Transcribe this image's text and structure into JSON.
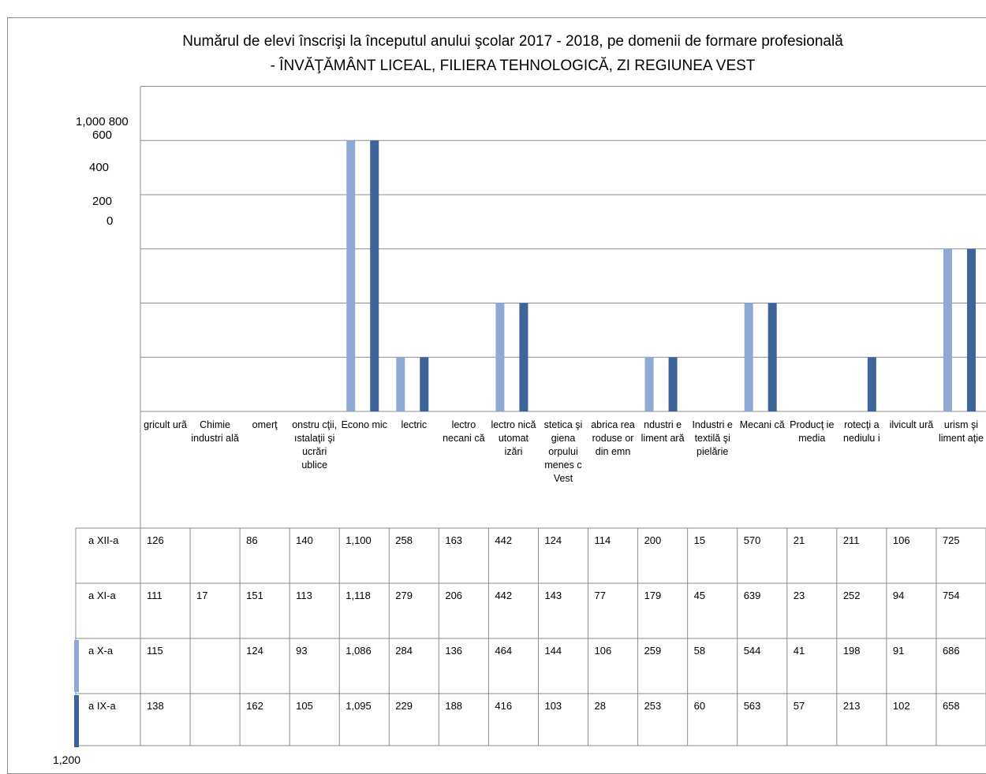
{
  "chart_data": {
    "type": "bar",
    "title": "Numărul de elevi înscrişi la începutul anului şcolar 2017 - 2018, pe domenii de formare profesională",
    "subtitle": "- ÎNVĂŢĂMÂNT LICEAL,  FILIERA TEHNOLOGICĂ, ZI REGIUNEA VEST",
    "ytick_labels": [
      "1,000 800",
      "600",
      "400",
      "200",
      "0"
    ],
    "ylim": [
      0,
      1200
    ],
    "y_axis_stray_label": "1,200",
    "grid": true,
    "categories": [
      "gricult urã",
      "Chimie industri ală",
      "omerţ",
      "onstru cţii, ıstalaţii şi ucrări ublice",
      "Econo mic",
      "lectric",
      "lectro necani că",
      "lectro nică utomat izări",
      "stetica şi giena orpului menes c Vest",
      "abrica rea roduse or din emn",
      "ndustri e liment ară",
      "Industri e textilă şi pielărie",
      "Mecani că",
      "Producţ ie media",
      "rotecţi a nediulu i",
      "ilvicult ură",
      "urism şi liment aţie"
    ],
    "series": [
      {
        "name": "a XII-a",
        "color": "#ffffff",
        "values": [
          126,
          null,
          86,
          140,
          1100,
          258,
          163,
          442,
          124,
          114,
          200,
          15,
          570,
          21,
          211,
          106,
          725
        ]
      },
      {
        "name": "a XI-a",
        "color": "#ffffff",
        "values": [
          111,
          17,
          151,
          113,
          1118,
          279,
          206,
          442,
          143,
          77,
          179,
          45,
          639,
          23,
          252,
          94,
          754
        ]
      },
      {
        "name": "a X-a",
        "color": "#8fa8d4",
        "values": [
          115,
          null,
          124,
          93,
          1086,
          284,
          136,
          464,
          144,
          106,
          259,
          58,
          544,
          41,
          198,
          91,
          686
        ]
      },
      {
        "name": "a IX-a",
        "color": "#3d6398",
        "values": [
          138,
          null,
          162,
          105,
          1095,
          229,
          188,
          416,
          103,
          28,
          253,
          60,
          563,
          57,
          213,
          102,
          658
        ]
      }
    ],
    "table_row_labels": [
      "a XII-a",
      "a XI-a",
      "a X-a",
      "a IX-a"
    ],
    "table_rows": [
      [
        "126",
        "",
        "86",
        "140",
        "1,100",
        "258",
        "163",
        "442",
        "124",
        "114",
        "200",
        "15",
        "570",
        "21",
        "211",
        "106",
        "725"
      ],
      [
        "111",
        "17",
        "151",
        "113",
        "1,118",
        "279",
        "206",
        "442",
        "143",
        "77",
        "179",
        "45",
        "639",
        "23",
        "252",
        "94",
        "754"
      ],
      [
        "115",
        "",
        "124",
        "93",
        "1,086",
        "284",
        "136",
        "464",
        "144",
        "106",
        "259",
        "58",
        "544",
        "41",
        "198",
        "91",
        "686"
      ],
      [
        "138",
        "",
        "162",
        "105",
        "1,095",
        "229",
        "188",
        "416",
        "103",
        "28",
        "253",
        "60",
        "563",
        "57",
        "213",
        "102",
        "658"
      ]
    ],
    "legend": "table-rows"
  }
}
